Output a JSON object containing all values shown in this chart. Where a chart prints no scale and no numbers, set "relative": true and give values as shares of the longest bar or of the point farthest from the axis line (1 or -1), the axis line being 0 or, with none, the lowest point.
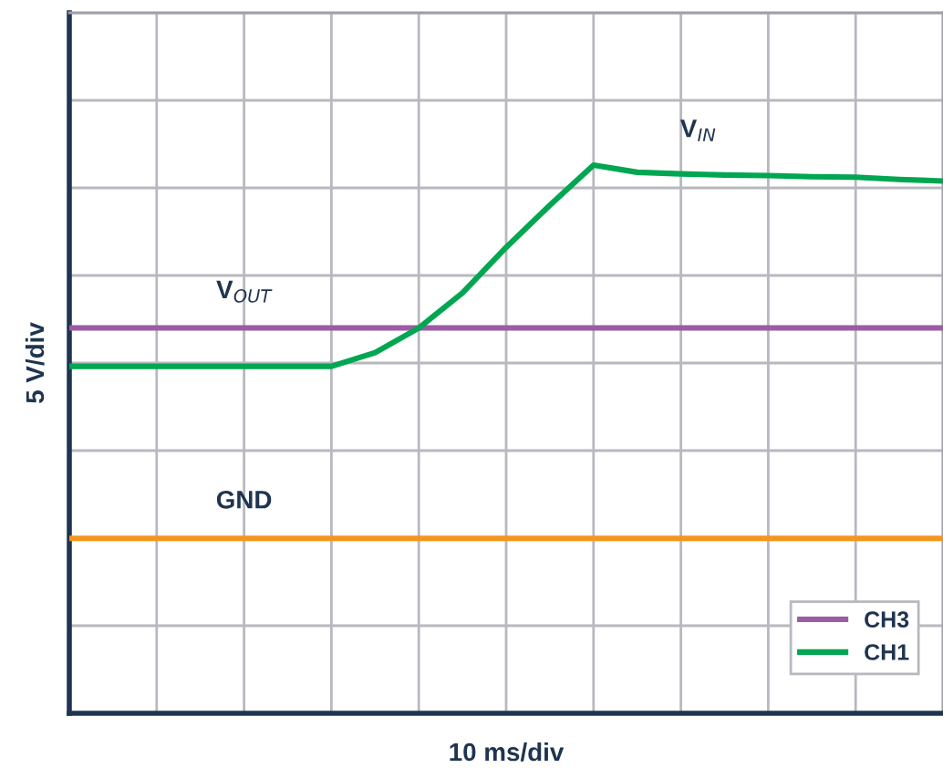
{
  "chart_data": {
    "type": "line",
    "xlabel": "10 ms/div",
    "ylabel": "5 V/div",
    "relative": true,
    "categories": [
      null,
      null,
      null,
      null,
      null,
      null,
      null,
      null,
      null,
      null,
      null,
      null,
      null,
      null,
      null,
      null,
      null,
      null,
      null,
      null,
      null
    ],
    "grid": true,
    "legend": "bottom right",
    "marker": "none",
    "line_style": "solid",
    "series": [
      {
        "name": "CH3",
        "color": "#9b5ba5",
        "values": [
          0.703,
          0.703,
          0.703,
          0.703,
          0.703,
          0.703,
          0.703,
          0.703,
          0.703,
          0.703,
          0.703,
          0.703,
          0.703,
          0.703,
          0.703,
          0.703,
          0.703,
          0.703,
          0.703,
          0.703,
          0.703
        ]
      },
      {
        "name": "CH1",
        "color": "#00a651",
        "values": [
          0.633,
          0.633,
          0.633,
          0.633,
          0.633,
          0.633,
          0.633,
          0.658,
          0.703,
          0.767,
          0.85,
          0.927,
          1,
          0.987,
          0.984,
          0.982,
          0.981,
          0.979,
          0.978,
          0.974,
          0.971
        ]
      },
      {
        "color": "#f7941d",
        "values": [
          0.319,
          0.319,
          0.319,
          0.319,
          0.319,
          0.319,
          0.319,
          0.319,
          0.319,
          0.319,
          0.319,
          0.319,
          0.319,
          0.319,
          0.319,
          0.319,
          0.319,
          0.319,
          0.319,
          0.319,
          0.319
        ]
      }
    ],
    "annotations": [
      "V$_{OUT}$",
      "V$_{IN}$",
      "GND"
    ]
  }
}
